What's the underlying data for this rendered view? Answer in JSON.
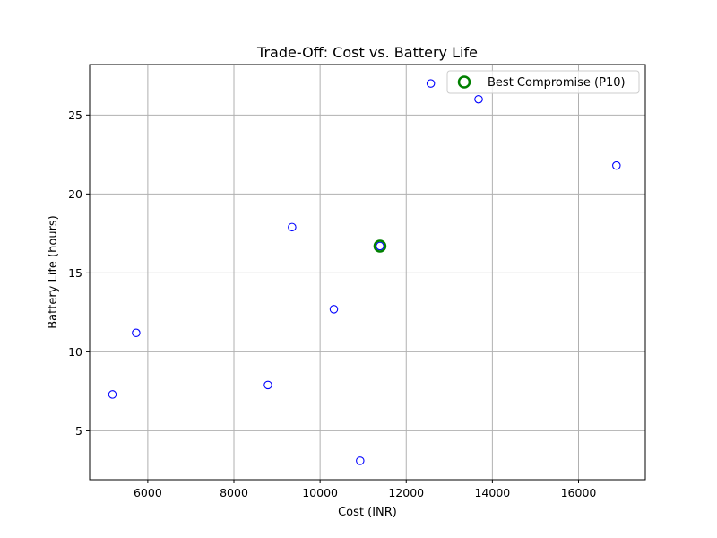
{
  "chart_data": {
    "type": "scatter",
    "title": "Trade-Off: Cost vs. Battery Life",
    "xlabel": "Cost (INR)",
    "ylabel": "Battery Life (hours)",
    "xlim": [
      4650,
      17550
    ],
    "ylim": [
      1.9,
      28.2
    ],
    "xticks": [
      6000,
      8000,
      10000,
      12000,
      14000,
      16000
    ],
    "yticks": [
      5,
      10,
      15,
      20,
      25
    ],
    "grid": true,
    "legend_position": "top-right",
    "points": [
      {
        "x": 5180,
        "y": 7.3
      },
      {
        "x": 5730,
        "y": 11.2
      },
      {
        "x": 8790,
        "y": 7.9
      },
      {
        "x": 9350,
        "y": 17.9
      },
      {
        "x": 10320,
        "y": 12.7
      },
      {
        "x": 10930,
        "y": 3.1
      },
      {
        "x": 11390,
        "y": 16.7
      },
      {
        "x": 12570,
        "y": 27.0
      },
      {
        "x": 13680,
        "y": 26.0
      },
      {
        "x": 16880,
        "y": 21.8
      }
    ],
    "highlight": {
      "name": "Best Compromise (P10)",
      "x": 11390,
      "y": 16.7
    },
    "colors": {
      "points": "#0000ff",
      "highlight": "#008000",
      "grid": "#b0b0b0"
    }
  }
}
